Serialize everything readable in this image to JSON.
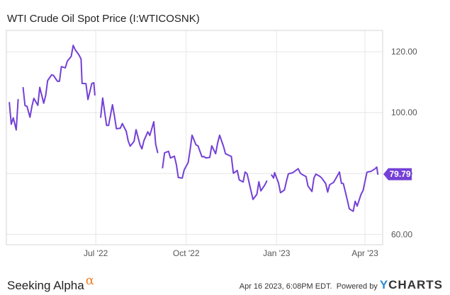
{
  "chart_data": {
    "type": "line",
    "title": "WTI Crude Oil Spot Price (I:WTICOSNK)",
    "xlabel": "",
    "ylabel": "",
    "x_ticks": [
      "Jul '22",
      "Oct '22",
      "Jan '23",
      "Apr '23"
    ],
    "y_ticks": [
      "60.00",
      "80.00",
      "100.00",
      "120.00"
    ],
    "ylim": [
      56.6,
      127
    ],
    "last_value": 79.79,
    "last_value_label": "79.79",
    "series_color": "#7440d6",
    "grid": true,
    "series": [
      {
        "name": "",
        "points": [
          [
            "2022-04-04",
            103.3
          ],
          [
            "2022-04-06",
            96.2
          ],
          [
            "2022-04-08",
            98.3
          ],
          [
            "2022-04-11",
            94.3
          ],
          [
            "2022-04-13",
            104.3
          ],
          [
            "2022-04-18",
            108.2
          ],
          [
            "2022-04-20",
            102.3
          ],
          [
            "2022-04-22",
            102.1
          ],
          [
            "2022-04-25",
            98.5
          ],
          [
            "2022-04-27",
            102.0
          ],
          [
            "2022-04-29",
            104.7
          ],
          [
            "2022-05-03",
            102.4
          ],
          [
            "2022-05-05",
            108.3
          ],
          [
            "2022-05-09",
            103.1
          ],
          [
            "2022-05-11",
            105.7
          ],
          [
            "2022-05-13",
            110.5
          ],
          [
            "2022-05-17",
            112.4
          ],
          [
            "2022-05-19",
            112.2
          ],
          [
            "2022-05-23",
            110.3
          ],
          [
            "2022-05-25",
            110.3
          ],
          [
            "2022-05-27",
            115.1
          ],
          [
            "2022-05-31",
            114.7
          ],
          [
            "2022-06-02",
            116.9
          ],
          [
            "2022-06-06",
            118.5
          ],
          [
            "2022-06-08",
            122.1
          ],
          [
            "2022-06-10",
            120.7
          ],
          [
            "2022-06-14",
            118.9
          ],
          [
            "2022-06-16",
            117.6
          ],
          [
            "2022-06-17",
            109.6
          ],
          [
            "2022-06-21",
            109.5
          ],
          [
            "2022-06-23",
            104.3
          ],
          [
            "2022-06-27",
            109.6
          ],
          [
            "2022-06-29",
            109.8
          ],
          [
            "2022-06-30",
            105.8
          ],
          [
            "2022-07-06",
            98.5
          ],
          [
            "2022-07-08",
            104.8
          ],
          [
            "2022-07-12",
            95.8
          ],
          [
            "2022-07-14",
            95.8
          ],
          [
            "2022-07-18",
            102.6
          ],
          [
            "2022-07-20",
            98.9
          ],
          [
            "2022-07-22",
            94.7
          ],
          [
            "2022-07-26",
            94.9
          ],
          [
            "2022-07-28",
            96.4
          ],
          [
            "2022-08-01",
            93.9
          ],
          [
            "2022-08-03",
            90.7
          ],
          [
            "2022-08-05",
            89.0
          ],
          [
            "2022-08-09",
            90.6
          ],
          [
            "2022-08-11",
            94.4
          ],
          [
            "2022-08-15",
            89.4
          ],
          [
            "2022-08-17",
            88.1
          ],
          [
            "2022-08-19",
            90.8
          ],
          [
            "2022-08-23",
            93.7
          ],
          [
            "2022-08-25",
            92.5
          ],
          [
            "2022-08-29",
            97.0
          ],
          [
            "2022-08-31",
            89.6
          ],
          [
            "2022-09-02",
            86.9
          ],
          [
            "2022-09-07",
            81.9
          ],
          [
            "2022-09-09",
            86.8
          ],
          [
            "2022-09-13",
            87.3
          ],
          [
            "2022-09-15",
            85.1
          ],
          [
            "2022-09-19",
            85.7
          ],
          [
            "2022-09-21",
            82.9
          ],
          [
            "2022-09-23",
            78.7
          ],
          [
            "2022-09-27",
            78.5
          ],
          [
            "2022-09-29",
            81.2
          ],
          [
            "2022-10-03",
            83.6
          ],
          [
            "2022-10-05",
            87.8
          ],
          [
            "2022-10-07",
            92.6
          ],
          [
            "2022-10-11",
            89.4
          ],
          [
            "2022-10-13",
            89.1
          ],
          [
            "2022-10-17",
            85.5
          ],
          [
            "2022-10-19",
            85.6
          ],
          [
            "2022-10-21",
            85.1
          ],
          [
            "2022-10-25",
            85.3
          ],
          [
            "2022-10-27",
            89.1
          ],
          [
            "2022-10-31",
            86.5
          ],
          [
            "2022-11-02",
            90.0
          ],
          [
            "2022-11-04",
            92.6
          ],
          [
            "2022-11-08",
            88.9
          ],
          [
            "2022-11-10",
            86.5
          ],
          [
            "2022-11-14",
            85.9
          ],
          [
            "2022-11-16",
            85.6
          ],
          [
            "2022-11-18",
            80.1
          ],
          [
            "2022-11-22",
            81.0
          ],
          [
            "2022-11-24",
            77.9
          ],
          [
            "2022-11-28",
            77.2
          ],
          [
            "2022-11-30",
            80.5
          ],
          [
            "2022-12-02",
            79.9
          ],
          [
            "2022-12-06",
            74.3
          ],
          [
            "2022-12-08",
            71.5
          ],
          [
            "2022-12-12",
            73.2
          ],
          [
            "2022-12-14",
            77.3
          ],
          [
            "2022-12-16",
            74.3
          ],
          [
            "2022-12-20",
            76.2
          ],
          [
            "2022-12-22",
            77.5
          ],
          [
            "2022-12-27",
            79.5
          ],
          [
            "2022-12-29",
            78.5
          ],
          [
            "2022-12-30",
            80.3
          ],
          [
            "2023-01-03",
            76.9
          ],
          [
            "2023-01-05",
            73.7
          ],
          [
            "2023-01-09",
            74.6
          ],
          [
            "2023-01-11",
            77.4
          ],
          [
            "2023-01-13",
            79.9
          ],
          [
            "2023-01-17",
            80.2
          ],
          [
            "2023-01-19",
            80.6
          ],
          [
            "2023-01-23",
            81.6
          ],
          [
            "2023-01-25",
            80.2
          ],
          [
            "2023-01-27",
            79.7
          ],
          [
            "2023-01-31",
            79.0
          ],
          [
            "2023-02-02",
            75.9
          ],
          [
            "2023-02-06",
            74.1
          ],
          [
            "2023-02-08",
            78.5
          ],
          [
            "2023-02-10",
            79.8
          ],
          [
            "2023-02-14",
            79.1
          ],
          [
            "2023-02-16",
            78.5
          ],
          [
            "2023-02-20",
            76.7
          ],
          [
            "2023-02-22",
            73.9
          ],
          [
            "2023-02-24",
            76.3
          ],
          [
            "2023-02-28",
            77.1
          ],
          [
            "2023-03-02",
            78.2
          ],
          [
            "2023-03-06",
            80.5
          ],
          [
            "2023-03-08",
            76.8
          ],
          [
            "2023-03-10",
            76.7
          ],
          [
            "2023-03-14",
            71.3
          ],
          [
            "2023-03-16",
            68.4
          ],
          [
            "2023-03-20",
            67.6
          ],
          [
            "2023-03-22",
            70.9
          ],
          [
            "2023-03-24",
            69.3
          ],
          [
            "2023-03-28",
            73.2
          ],
          [
            "2023-03-30",
            74.4
          ],
          [
            "2023-04-03",
            80.4
          ],
          [
            "2023-04-05",
            80.6
          ],
          [
            "2023-04-07",
            80.7
          ],
          [
            "2023-04-11",
            81.5
          ],
          [
            "2023-04-13",
            82.1
          ],
          [
            "2023-04-14",
            79.79
          ]
        ]
      }
    ]
  },
  "footer": {
    "brand_text": "Seeking Alpha",
    "brand_symbol": "α",
    "timestamp": "Apr 16 2023, 6:08PM EDT.",
    "powered_by": "Powered by",
    "ycharts_y": "Y",
    "ycharts_rest": "CHARTS"
  }
}
